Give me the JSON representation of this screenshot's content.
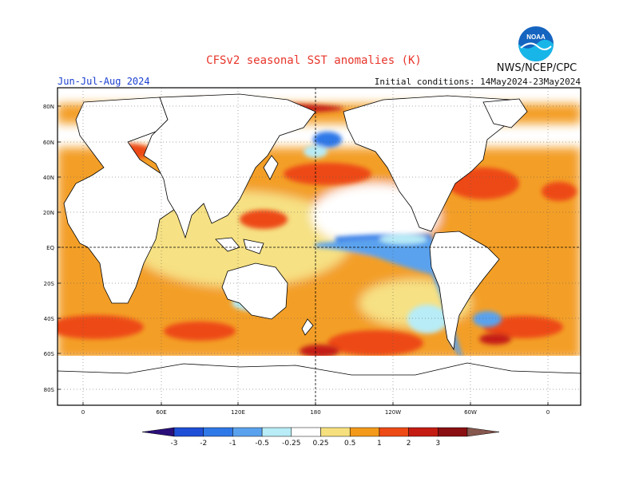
{
  "header": {
    "title": "CFSv2 seasonal SST anomalies (K)",
    "season": "Jun-Jul-Aug 2024",
    "initial_conditions": "Initial conditions: 14May2024-23May2024",
    "agency": "NWS/NCEP/CPC",
    "logo_text": "NOAA"
  },
  "map": {
    "lat_labels": [
      "80N",
      "60N",
      "40N",
      "20N",
      "EQ",
      "20S",
      "40S",
      "60S",
      "80S"
    ],
    "lon_labels": [
      "0",
      "60E",
      "120E",
      "180",
      "120W",
      "60W",
      "0"
    ]
  },
  "colorbar": {
    "ticks": [
      "-3",
      "-2",
      "-1",
      "-0.5",
      "-0.25",
      "0.25",
      "0.5",
      "1",
      "2",
      "3"
    ],
    "colors": [
      "#2a0f7a",
      "#1f4fd6",
      "#2f78e8",
      "#5aa2ee",
      "#b8ecf6",
      "#ffffff",
      "#f6e07e",
      "#f39a1a",
      "#ed4a16",
      "#c41c12",
      "#8a0f12",
      "#86574d"
    ]
  }
}
